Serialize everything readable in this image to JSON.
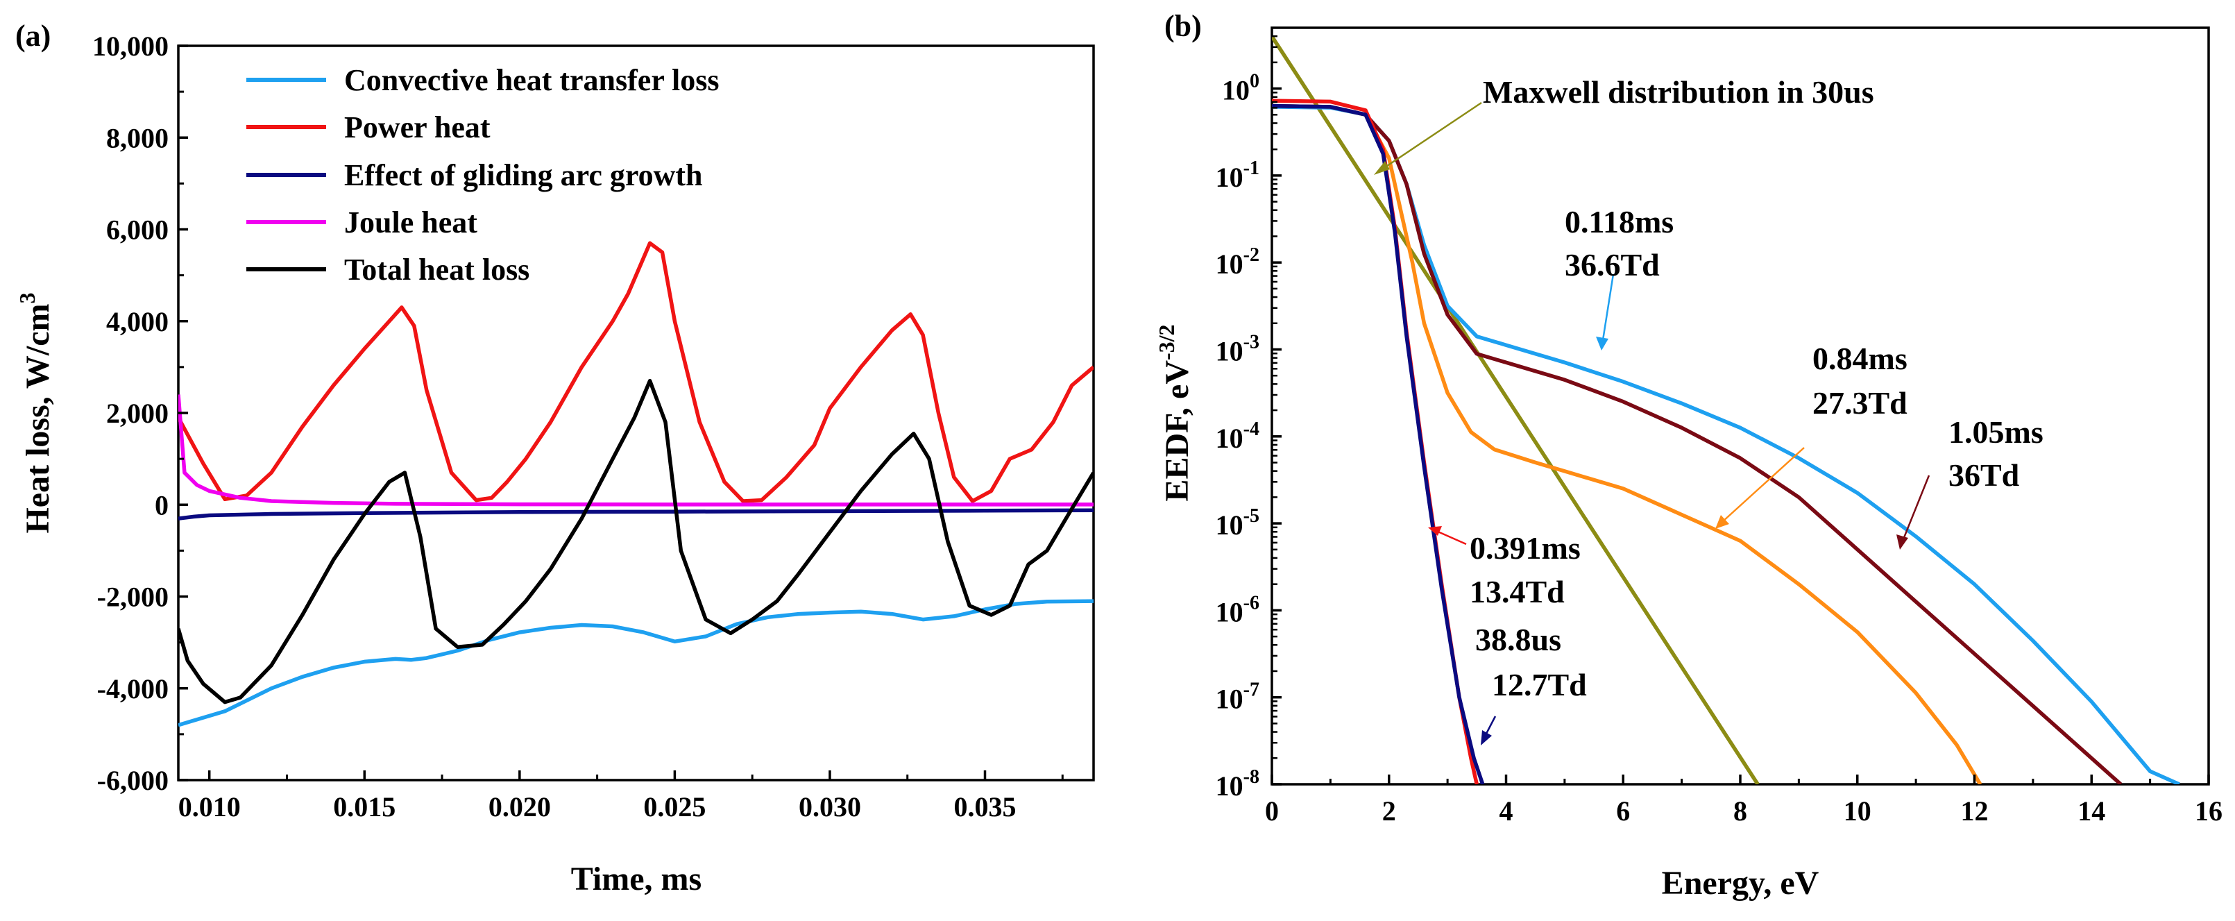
{
  "chart_data": [
    {
      "panel": "(a)",
      "type": "line",
      "xlabel": "Time, ms",
      "ylabel": "Heat loss, W/cm",
      "ylabel_sup": "3",
      "xlim": [
        0.009,
        0.0385
      ],
      "ylim": [
        -6000,
        10000
      ],
      "xticks": [
        0.01,
        0.015,
        0.02,
        0.025,
        0.03,
        0.035
      ],
      "xtick_labels": [
        "0.010",
        "0.015",
        "0.020",
        "0.025",
        "0.030",
        "0.035"
      ],
      "yticks": [
        -6000,
        -4000,
        -2000,
        0,
        2000,
        4000,
        6000,
        8000,
        10000
      ],
      "ytick_labels": [
        "-6,000",
        "-4,000",
        "-2,000",
        "0",
        "2,000",
        "4,000",
        "6,000",
        "8,000",
        "10,000"
      ],
      "legend_position": "top-left",
      "series": [
        {
          "name": "Convective heat transfer loss",
          "color": "#1ea0f0",
          "x": [
            0.009,
            0.0105,
            0.012,
            0.013,
            0.014,
            0.015,
            0.016,
            0.0165,
            0.017,
            0.018,
            0.019,
            0.02,
            0.021,
            0.022,
            0.023,
            0.024,
            0.025,
            0.026,
            0.027,
            0.028,
            0.029,
            0.03,
            0.031,
            0.032,
            0.033,
            0.034,
            0.035,
            0.036,
            0.037,
            0.0385
          ],
          "y": [
            -4800,
            -4500,
            -4000,
            -3750,
            -3550,
            -3420,
            -3360,
            -3380,
            -3340,
            -3180,
            -2950,
            -2780,
            -2680,
            -2620,
            -2650,
            -2780,
            -2980,
            -2870,
            -2600,
            -2450,
            -2380,
            -2350,
            -2330,
            -2380,
            -2500,
            -2430,
            -2280,
            -2160,
            -2110,
            -2100
          ]
        },
        {
          "name": "Power heat",
          "color": "#f01414",
          "x": [
            0.009,
            0.0098,
            0.0105,
            0.0112,
            0.012,
            0.013,
            0.014,
            0.015,
            0.0158,
            0.0162,
            0.0166,
            0.017,
            0.0178,
            0.0186,
            0.0191,
            0.0196,
            0.0202,
            0.021,
            0.022,
            0.023,
            0.0235,
            0.0242,
            0.0246,
            0.025,
            0.0258,
            0.0266,
            0.0272,
            0.0278,
            0.0286,
            0.0295,
            0.03,
            0.031,
            0.032,
            0.0326,
            0.033,
            0.0335,
            0.034,
            0.0346,
            0.0352,
            0.0358,
            0.0365,
            0.0372,
            0.0378,
            0.0385
          ],
          "y": [
            1900,
            900,
            120,
            200,
            700,
            1700,
            2600,
            3400,
            4000,
            4300,
            3900,
            2500,
            700,
            100,
            150,
            500,
            1000,
            1800,
            3000,
            4000,
            4600,
            5700,
            5500,
            4000,
            1800,
            500,
            80,
            100,
            600,
            1300,
            2100,
            3000,
            3800,
            4150,
            3700,
            2000,
            600,
            80,
            300,
            1000,
            1200,
            1800,
            2600,
            3000
          ]
        },
        {
          "name": "Effect of gliding arc growth",
          "color": "#0a0a80",
          "x": [
            0.009,
            0.0095,
            0.01,
            0.012,
            0.015,
            0.02,
            0.025,
            0.03,
            0.035,
            0.0385
          ],
          "y": [
            -300,
            -260,
            -230,
            -200,
            -180,
            -160,
            -150,
            -140,
            -130,
            -120
          ]
        },
        {
          "name": "Joule heat",
          "color": "#f000f0",
          "x": [
            0.009,
            0.0092,
            0.0096,
            0.01,
            0.011,
            0.012,
            0.014,
            0.016,
            0.02,
            0.025,
            0.03,
            0.0385
          ],
          "y": [
            2400,
            700,
            430,
            300,
            150,
            80,
            40,
            20,
            10,
            5,
            5,
            5
          ]
        },
        {
          "name": "Total heat loss",
          "color": "#000000",
          "x": [
            0.009,
            0.0093,
            0.0098,
            0.0105,
            0.011,
            0.012,
            0.013,
            0.014,
            0.015,
            0.0158,
            0.0163,
            0.0168,
            0.0173,
            0.018,
            0.0188,
            0.0195,
            0.0202,
            0.021,
            0.022,
            0.023,
            0.0237,
            0.0242,
            0.0247,
            0.0252,
            0.026,
            0.0268,
            0.0275,
            0.0283,
            0.029,
            0.03,
            0.031,
            0.032,
            0.0327,
            0.0332,
            0.0338,
            0.0345,
            0.0352,
            0.0358,
            0.0364,
            0.037,
            0.0377,
            0.0385
          ],
          "y": [
            -2700,
            -3400,
            -3900,
            -4300,
            -4200,
            -3500,
            -2400,
            -1200,
            -200,
            500,
            700,
            -700,
            -2700,
            -3100,
            -3050,
            -2600,
            -2100,
            -1400,
            -300,
            1000,
            1900,
            2700,
            1800,
            -1000,
            -2500,
            -2800,
            -2500,
            -2100,
            -1500,
            -600,
            300,
            1100,
            1550,
            1000,
            -800,
            -2200,
            -2400,
            -2200,
            -1300,
            -1000,
            -200,
            700
          ]
        }
      ]
    },
    {
      "panel": "(b)",
      "type": "line",
      "xlabel": "Energy, eV",
      "ylabel": "EEDF, eV",
      "ylabel_sup": "-3/2",
      "xlim": [
        0,
        16
      ],
      "ylim": [
        1e-08,
        5
      ],
      "yscale": "log",
      "xticks": [
        0,
        2,
        4,
        6,
        8,
        10,
        12,
        14,
        16
      ],
      "xtick_labels": [
        "0",
        "2",
        "4",
        "6",
        "8",
        "10",
        "12",
        "14",
        "16"
      ],
      "ytick_bases": [
        "10",
        "10",
        "10",
        "10",
        "10",
        "10",
        "10",
        "10",
        "10"
      ],
      "ytick_exps": [
        "0",
        "-1",
        "-2",
        "-3",
        "-4",
        "-5",
        "-6",
        "-7",
        "-8"
      ],
      "yticks_exp_values": [
        0,
        -1,
        -2,
        -3,
        -4,
        -5,
        -6,
        -7,
        -8
      ],
      "series": [
        {
          "name": "Maxwell distribution in 30us",
          "color": "#8c8c14",
          "x": [
            0,
            8.3
          ],
          "log10y": [
            0.6,
            -8.0
          ]
        },
        {
          "name": "0.118ms 36.6Td",
          "color": "#1ea0f0",
          "x": [
            0,
            1,
            1.6,
            2.0,
            2.3,
            2.6,
            3.0,
            3.5,
            4.0,
            5,
            6,
            7,
            8,
            9,
            10,
            11,
            12,
            13,
            14,
            15,
            15.5
          ],
          "log10y": [
            -0.21,
            -0.22,
            -0.3,
            -0.6,
            -1.1,
            -1.8,
            -2.5,
            -2.85,
            -2.95,
            -3.15,
            -3.37,
            -3.62,
            -3.9,
            -4.25,
            -4.65,
            -5.15,
            -5.7,
            -6.35,
            -7.05,
            -7.85,
            -8.0
          ]
        },
        {
          "name": "0.84ms 27.3Td",
          "color": "#ff8c14",
          "x": [
            0,
            1,
            1.6,
            2.0,
            2.2,
            2.4,
            2.6,
            3.0,
            3.4,
            3.8,
            4.5,
            5,
            6,
            7,
            8,
            9,
            10,
            11,
            11.7,
            12.1
          ],
          "log10y": [
            -0.2,
            -0.21,
            -0.3,
            -0.8,
            -1.4,
            -2.0,
            -2.7,
            -3.5,
            -3.95,
            -4.15,
            -4.3,
            -4.4,
            -4.6,
            -4.9,
            -5.2,
            -5.7,
            -6.25,
            -6.95,
            -7.55,
            -8.0
          ]
        },
        {
          "name": "1.05ms 36Td",
          "color": "#7a0a14",
          "x": [
            0,
            1,
            1.6,
            2.0,
            2.3,
            2.6,
            3.0,
            3.5,
            4.0,
            5,
            6,
            7,
            8,
            9,
            10,
            11,
            12,
            13,
            14,
            14.5
          ],
          "log10y": [
            -0.2,
            -0.21,
            -0.3,
            -0.6,
            -1.1,
            -1.9,
            -2.6,
            -3.05,
            -3.15,
            -3.35,
            -3.6,
            -3.9,
            -4.25,
            -4.7,
            -5.3,
            -5.9,
            -6.5,
            -7.1,
            -7.7,
            -8.0
          ]
        },
        {
          "name": "0.391ms 13.4Td",
          "color": "#f01414",
          "x": [
            0,
            1,
            1.6,
            1.9,
            2.1,
            2.3,
            2.6,
            2.9,
            3.2,
            3.4,
            3.5
          ],
          "log10y": [
            -0.14,
            -0.15,
            -0.25,
            -0.7,
            -1.6,
            -2.8,
            -4.3,
            -5.7,
            -7.0,
            -7.7,
            -8.0
          ]
        },
        {
          "name": "38.8us 12.7Td",
          "color": "#0a0a80",
          "x": [
            0,
            1,
            1.6,
            1.9,
            2.1,
            2.3,
            2.6,
            2.9,
            3.2,
            3.45,
            3.6
          ],
          "log10y": [
            -0.2,
            -0.21,
            -0.3,
            -0.75,
            -1.65,
            -2.85,
            -4.35,
            -5.75,
            -7.0,
            -7.7,
            -8.0
          ]
        }
      ],
      "annotations": [
        {
          "text": "Maxwell distribution in 30us",
          "color": "#8c8c14"
        },
        {
          "text": "0.118ms",
          "color": "#1ea0f0"
        },
        {
          "text": "36.6Td",
          "color": "#1ea0f0"
        },
        {
          "text": "0.84ms",
          "color": "#ff8c14"
        },
        {
          "text": "27.3Td",
          "color": "#ff8c14"
        },
        {
          "text": "1.05ms",
          "color": "#7a0a14"
        },
        {
          "text": "36Td",
          "color": "#7a0a14"
        },
        {
          "text": "0.391ms",
          "color": "#f01414"
        },
        {
          "text": "13.4Td",
          "color": "#f01414"
        },
        {
          "text": "38.8us",
          "color": "#0a0a80"
        },
        {
          "text": "12.7Td",
          "color": "#0a0a80"
        }
      ]
    }
  ]
}
